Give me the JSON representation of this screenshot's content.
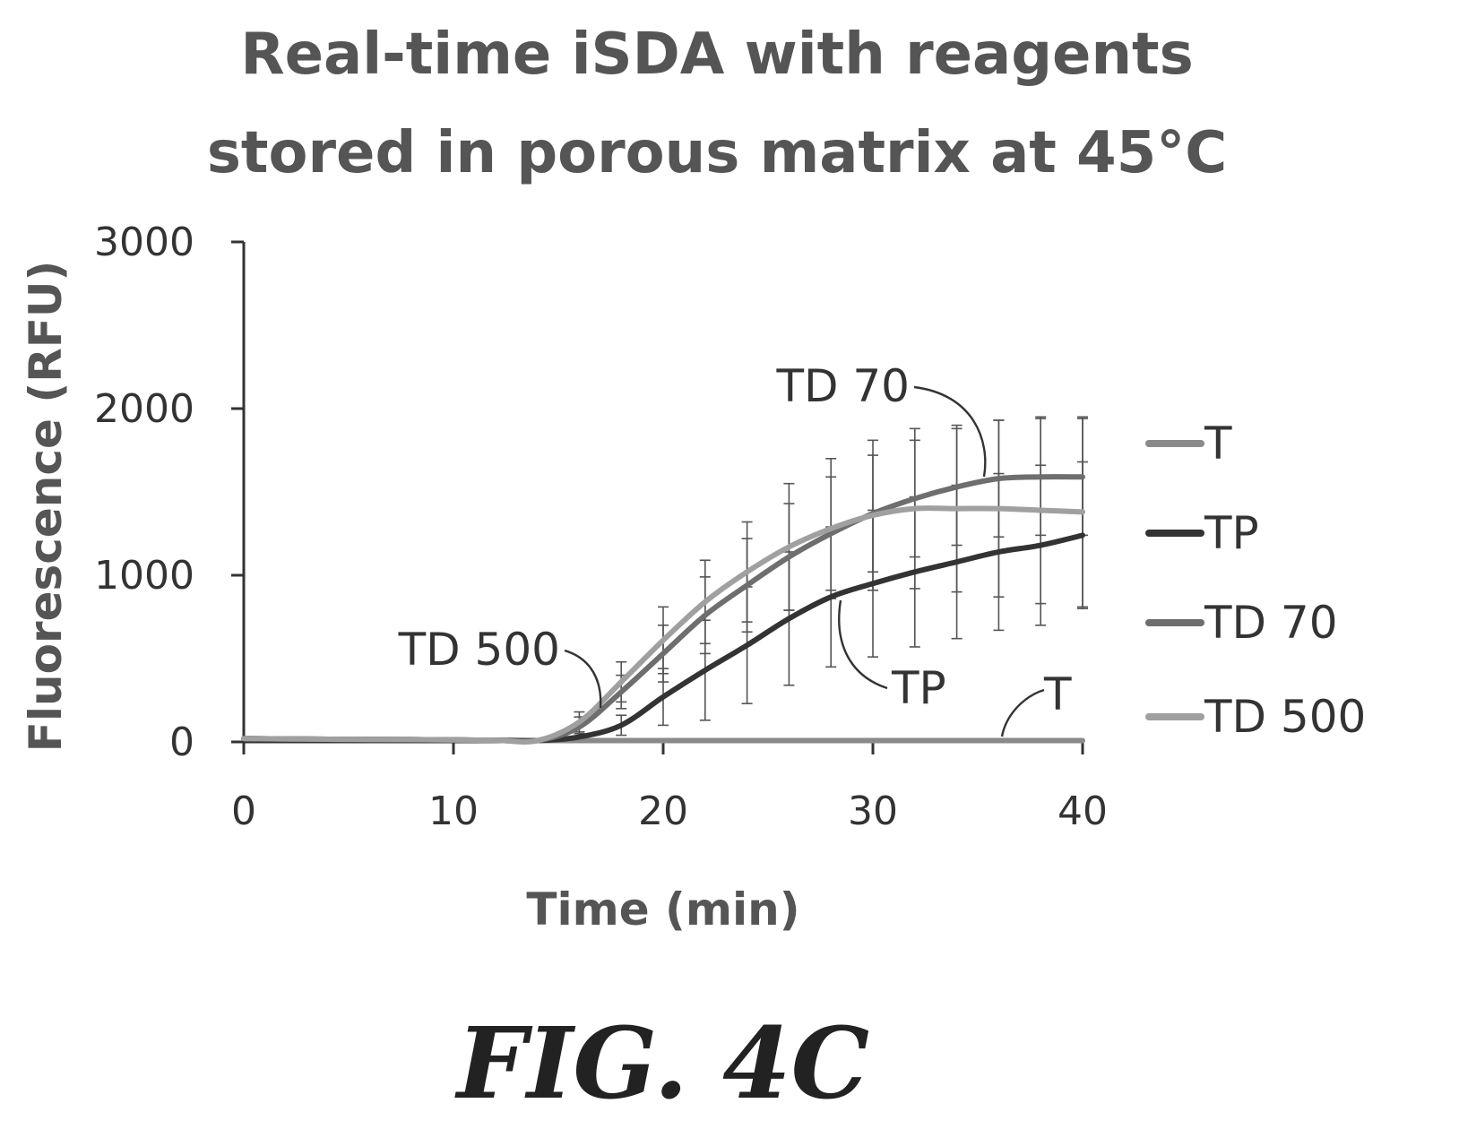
{
  "chart_data": {
    "type": "line",
    "title_lines": [
      "Real-time iSDA with reagents",
      "stored in porous matrix at 45°C"
    ],
    "xlabel": "Time (min)",
    "ylabel": "Fluorescence (RFU)",
    "xlim": [
      0,
      40
    ],
    "ylim": [
      0,
      3000
    ],
    "xticks": [
      0,
      10,
      20,
      30,
      40
    ],
    "yticks": [
      0,
      1000,
      2000,
      3000
    ],
    "grid": false,
    "legend_position": "right",
    "x": [
      0,
      2,
      4,
      6,
      8,
      10,
      12,
      14,
      16,
      18,
      20,
      22,
      24,
      26,
      28,
      30,
      32,
      34,
      36,
      38,
      40
    ],
    "series": [
      {
        "name": "T",
        "color": "#8a8a8a",
        "values": [
          20,
          18,
          16,
          15,
          14,
          12,
          10,
          8,
          8,
          8,
          8,
          8,
          8,
          8,
          8,
          8,
          8,
          8,
          8,
          8,
          8
        ]
      },
      {
        "name": "TP",
        "color": "#333333",
        "values": [
          20,
          18,
          16,
          15,
          14,
          12,
          10,
          8,
          30,
          100,
          270,
          430,
          580,
          740,
          870,
          950,
          1020,
          1080,
          1140,
          1180,
          1240
        ],
        "error": [
          0,
          0,
          0,
          0,
          0,
          0,
          0,
          0,
          20,
          60,
          170,
          300,
          350,
          400,
          420,
          440,
          450,
          460,
          470,
          480,
          440
        ]
      },
      {
        "name": "TD 70",
        "color": "#6e6e6e",
        "values": [
          20,
          18,
          16,
          15,
          14,
          12,
          10,
          8,
          90,
          300,
          530,
          760,
          940,
          1110,
          1250,
          1370,
          1460,
          1530,
          1580,
          1590,
          1590
        ],
        "error": [
          0,
          0,
          0,
          0,
          0,
          0,
          0,
          0,
          60,
          100,
          170,
          230,
          280,
          320,
          340,
          350,
          350,
          350,
          350,
          350,
          350
        ]
      },
      {
        "name": "TD 500",
        "color": "#a0a0a0",
        "values": [
          20,
          18,
          16,
          15,
          14,
          12,
          10,
          8,
          120,
          360,
          610,
          840,
          1020,
          1170,
          1280,
          1360,
          1400,
          1400,
          1400,
          1390,
          1380
        ],
        "error": [
          0,
          0,
          0,
          0,
          0,
          0,
          0,
          0,
          60,
          120,
          200,
          250,
          300,
          380,
          420,
          450,
          480,
          500,
          530,
          560,
          570
        ]
      }
    ],
    "annotations": [
      {
        "text": "TD 70",
        "series": "TD 70"
      },
      {
        "text": "TD 500",
        "series": "TD 500"
      },
      {
        "text": "TP",
        "series": "TP"
      },
      {
        "text": "T",
        "series": "T"
      }
    ]
  },
  "figure_label": "FIG. 4C"
}
